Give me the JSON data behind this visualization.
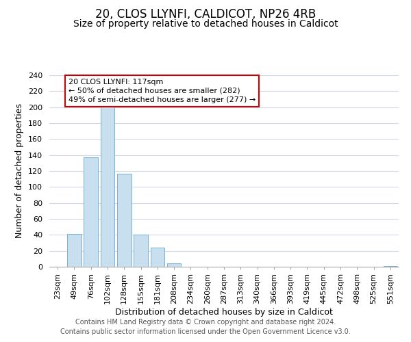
{
  "title": "20, CLOS LLYNFI, CALDICOT, NP26 4RB",
  "subtitle": "Size of property relative to detached houses in Caldicot",
  "xlabel": "Distribution of detached houses by size in Caldicot",
  "ylabel": "Number of detached properties",
  "bar_labels": [
    "23sqm",
    "49sqm",
    "76sqm",
    "102sqm",
    "128sqm",
    "155sqm",
    "181sqm",
    "208sqm",
    "234sqm",
    "260sqm",
    "287sqm",
    "313sqm",
    "340sqm",
    "366sqm",
    "393sqm",
    "419sqm",
    "445sqm",
    "472sqm",
    "498sqm",
    "525sqm",
    "551sqm"
  ],
  "bar_heights": [
    0,
    41,
    137,
    201,
    117,
    40,
    24,
    4,
    0,
    0,
    0,
    0,
    0,
    0,
    0,
    0,
    0,
    0,
    0,
    0,
    1
  ],
  "bar_color": "#c8dff0",
  "bar_edge_color": "#7aafd4",
  "ylim": [
    0,
    240
  ],
  "yticks": [
    0,
    20,
    40,
    60,
    80,
    100,
    120,
    140,
    160,
    180,
    200,
    220,
    240
  ],
  "annotation_line1": "20 CLOS LLYNFI: 117sqm",
  "annotation_line2": "← 50% of detached houses are smaller (282)",
  "annotation_line3": "49% of semi-detached houses are larger (277) →",
  "annotation_box_edge_color": "#cc0000",
  "footer_line1": "Contains HM Land Registry data © Crown copyright and database right 2024.",
  "footer_line2": "Contains public sector information licensed under the Open Government Licence v3.0.",
  "background_color": "#ffffff",
  "grid_color": "#d0d8e8",
  "title_fontsize": 12,
  "subtitle_fontsize": 10,
  "axis_label_fontsize": 9,
  "tick_fontsize": 8,
  "footer_fontsize": 7
}
